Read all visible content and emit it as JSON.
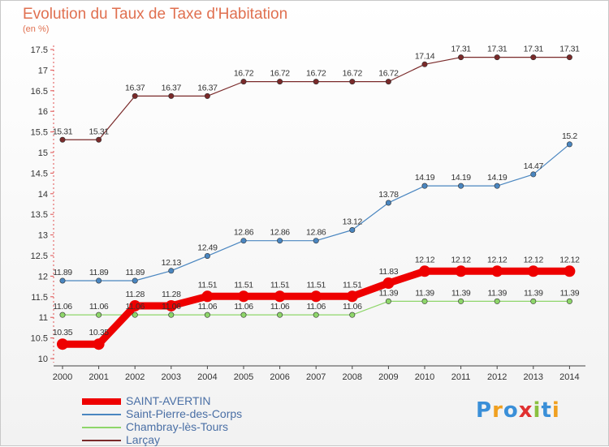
{
  "chart_data": {
    "type": "line",
    "title": "Evolution du Taux de Taxe d'Habitation",
    "subtitle": "(en %)",
    "x": [
      "2000",
      "2001",
      "2002",
      "2003",
      "2004",
      "2005",
      "2006",
      "2007",
      "2008",
      "2009",
      "2010",
      "2011",
      "2012",
      "2013",
      "2014"
    ],
    "ylim": [
      10,
      17.5
    ],
    "yticks": [
      "10",
      "10.5",
      "11",
      "11.5",
      "12",
      "12.5",
      "13",
      "13.5",
      "14",
      "14.5",
      "15",
      "15.5",
      "16",
      "16.5",
      "17",
      "17.5"
    ],
    "grid": false,
    "legend_position": "bottom-left",
    "series": [
      {
        "name": "Larçay",
        "color": "#7a2a2a",
        "values": [
          15.31,
          15.31,
          16.37,
          16.37,
          16.37,
          16.72,
          16.72,
          16.72,
          16.72,
          16.72,
          17.14,
          17.31,
          17.31,
          17.31,
          17.31
        ],
        "labels": [
          "15.31",
          "15.31",
          "16.37",
          "16.37",
          "16.37",
          "16.72",
          "16.72",
          "16.72",
          "16.72",
          "16.72",
          "17.14",
          "17.31",
          "17.31",
          "17.31",
          "17.31"
        ]
      },
      {
        "name": "Saint-Pierre-des-Corps",
        "color": "#4a86c0",
        "values": [
          11.89,
          11.89,
          11.89,
          12.13,
          12.49,
          12.86,
          12.86,
          12.86,
          13.12,
          13.78,
          14.19,
          14.19,
          14.19,
          14.47,
          15.2
        ],
        "labels": [
          "11.89",
          "11.89",
          "11.89",
          "12.13",
          "12.49",
          "12.86",
          "12.86",
          "12.86",
          "13.12",
          "13.78",
          "14.19",
          "14.19",
          "14.19",
          "14.47",
          "15.2"
        ]
      },
      {
        "name": "Chambray-lès-Tours",
        "color": "#8ed66a",
        "values": [
          11.06,
          11.06,
          11.06,
          11.06,
          11.06,
          11.06,
          11.06,
          11.06,
          11.06,
          11.39,
          11.39,
          11.39,
          11.39,
          11.39,
          11.39
        ],
        "labels": [
          "11.06",
          "11.06",
          "11.06",
          "11.06",
          "11.06",
          "11.06",
          "11.06",
          "11.06",
          "11.06",
          "11.39",
          "11.39",
          "11.39",
          "11.39",
          "11.39",
          "11.39"
        ]
      },
      {
        "name": "SAINT-AVERTIN",
        "color": "#ee0000",
        "values": [
          10.35,
          10.35,
          11.28,
          11.28,
          11.51,
          11.51,
          11.51,
          11.51,
          11.51,
          11.83,
          12.12,
          12.12,
          12.12,
          12.12,
          12.12
        ],
        "labels": [
          "10.35",
          "10.35",
          "11.28",
          "11.28",
          "11.51",
          "11.51",
          "11.51",
          "11.51",
          "11.51",
          "11.83",
          "12.12",
          "12.12",
          "12.12",
          "12.12",
          "12.12"
        ]
      }
    ]
  },
  "legend": [
    {
      "label": "SAINT-AVERTIN",
      "color": "#ee0000",
      "bold": true
    },
    {
      "label": "Saint-Pierre-des-Corps",
      "color": "#4a86c0",
      "bold": false
    },
    {
      "label": "Chambray-lès-Tours",
      "color": "#8ed66a",
      "bold": false
    },
    {
      "label": "Larçay",
      "color": "#7a2a2a",
      "bold": false
    }
  ],
  "logo": {
    "text": "Proxiti",
    "colors": [
      "#3a8fd8",
      "#f0a020",
      "#3a8fd8",
      "#e03030",
      "#8ac040",
      "#3a8fd8",
      "#f0a020"
    ]
  }
}
